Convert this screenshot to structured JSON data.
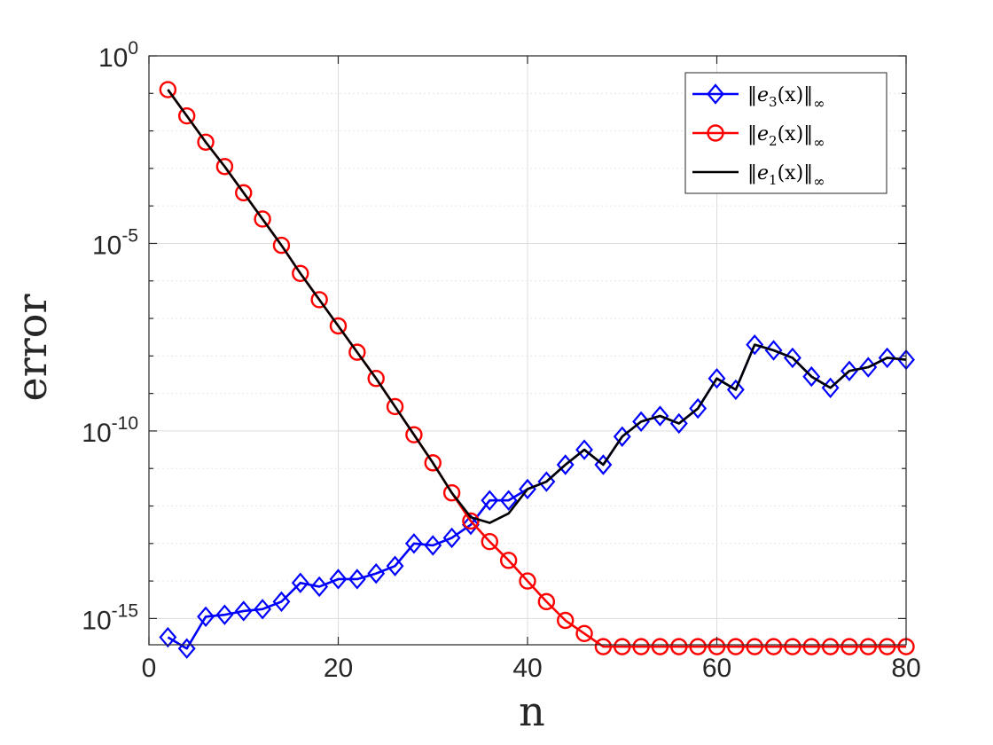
{
  "chart_data": {
    "type": "line",
    "title": "",
    "xlabel": "n",
    "ylabel": "error",
    "xlim": [
      0,
      80
    ],
    "ylim_log10": [
      -15.7,
      0
    ],
    "yscale": "log",
    "grid": true,
    "legend_position": "top-right",
    "x_ticks": [
      "0",
      "20",
      "40",
      "60",
      "80"
    ],
    "y_ticks": [
      {
        "base": "10",
        "exp": "0",
        "value": 0
      },
      {
        "base": "10",
        "exp": "-5",
        "value": -5
      },
      {
        "base": "10",
        "exp": "-10",
        "value": -10
      },
      {
        "base": "10",
        "exp": "-15",
        "value": -15
      }
    ],
    "series": [
      {
        "name": "‖e3(x)‖∞",
        "legend": {
          "pre": "‖e",
          "sub1": "3",
          "mid": "(x)‖",
          "sub2": "∞"
        },
        "color": "#0000ff",
        "marker": "diamond",
        "x": [
          2,
          4,
          6,
          8,
          10,
          12,
          14,
          16,
          18,
          20,
          22,
          24,
          26,
          28,
          30,
          32,
          34,
          36,
          38,
          40,
          42,
          44,
          46,
          48,
          50,
          52,
          54,
          56,
          58,
          60,
          62,
          64,
          66,
          68,
          70,
          72,
          74,
          76,
          78,
          80
        ],
        "y_log10": [
          -15.5,
          -15.8,
          -14.95,
          -14.9,
          -14.8,
          -14.75,
          -14.55,
          -14.05,
          -14.15,
          -13.95,
          -13.95,
          -13.8,
          -13.6,
          -13.0,
          -13.05,
          -12.85,
          -12.5,
          -11.85,
          -11.85,
          -11.55,
          -11.35,
          -10.9,
          -10.5,
          -10.9,
          -10.15,
          -9.75,
          -9.6,
          -9.8,
          -9.4,
          -8.6,
          -8.9,
          -7.7,
          -7.85,
          -8.05,
          -8.55,
          -8.85,
          -8.4,
          -8.3,
          -8.05,
          -8.1
        ]
      },
      {
        "name": "‖e2(x)‖∞",
        "legend": {
          "pre": "‖e",
          "sub1": "2",
          "mid": "(x)‖",
          "sub2": "∞"
        },
        "color": "#ff0000",
        "marker": "circle",
        "x": [
          2,
          4,
          6,
          8,
          10,
          12,
          14,
          16,
          18,
          20,
          22,
          24,
          26,
          28,
          30,
          32,
          34,
          36,
          38,
          40,
          42,
          44,
          46,
          48,
          50,
          52,
          54,
          56,
          58,
          60,
          62,
          64,
          66,
          68,
          70,
          72,
          74,
          76,
          78,
          80
        ],
        "y_log10": [
          -0.9,
          -1.6,
          -2.3,
          -2.95,
          -3.65,
          -4.35,
          -5.05,
          -5.8,
          -6.5,
          -7.2,
          -7.9,
          -8.6,
          -9.35,
          -10.1,
          -10.85,
          -11.65,
          -12.4,
          -12.95,
          -13.45,
          -14.0,
          -14.55,
          -15.05,
          -15.4,
          -15.75,
          -15.75,
          -15.75,
          -15.75,
          -15.75,
          -15.75,
          -15.75,
          -15.75,
          -15.75,
          -15.75,
          -15.75,
          -15.75,
          -15.75,
          -15.75,
          -15.75,
          -15.75,
          -15.75
        ]
      },
      {
        "name": "‖e1(x)‖∞",
        "legend": {
          "pre": "‖e",
          "sub1": "1",
          "mid": "(x)‖",
          "sub2": "∞"
        },
        "color": "#000000",
        "marker": "none",
        "x": [
          2,
          4,
          6,
          8,
          10,
          12,
          14,
          16,
          18,
          20,
          22,
          24,
          26,
          28,
          30,
          32,
          34,
          36,
          38,
          40,
          42,
          44,
          46,
          48,
          50,
          52,
          54,
          56,
          58,
          60,
          62,
          64,
          66,
          68,
          70,
          72,
          74,
          76,
          78,
          80
        ],
        "y_log10": [
          -0.9,
          -1.6,
          -2.3,
          -2.95,
          -3.65,
          -4.35,
          -5.05,
          -5.8,
          -6.5,
          -7.2,
          -7.9,
          -8.6,
          -9.35,
          -10.1,
          -10.85,
          -11.65,
          -12.3,
          -12.45,
          -12.2,
          -11.55,
          -11.35,
          -10.9,
          -10.5,
          -10.9,
          -10.15,
          -9.75,
          -9.6,
          -9.8,
          -9.4,
          -8.6,
          -8.9,
          -7.7,
          -7.85,
          -8.05,
          -8.55,
          -8.85,
          -8.4,
          -8.3,
          -8.05,
          -8.1
        ]
      }
    ]
  }
}
